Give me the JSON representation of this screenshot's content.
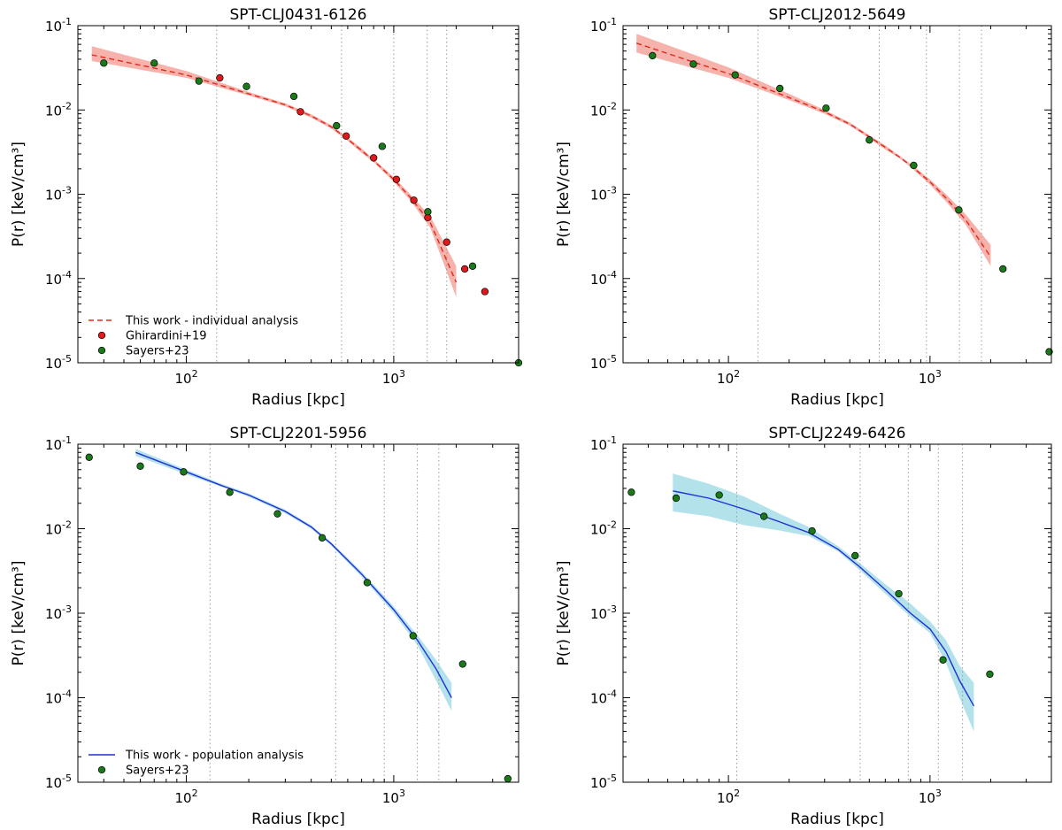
{
  "chart_data": [
    {
      "type": "scatter",
      "title": "SPT-CLJ0431-6126",
      "xlabel": "Radius [kpc]",
      "ylabel": "P(r) [keV/cm³]",
      "xscale": "log",
      "yscale": "log",
      "xlim": [
        30,
        4000
      ],
      "ylim": [
        1e-05,
        0.1
      ],
      "grid": false,
      "legend": "lower-left",
      "x_ticks": [
        {
          "base": "10",
          "exp": "2",
          "value": 100
        },
        {
          "base": "10",
          "exp": "3",
          "value": 1000
        }
      ],
      "y_ticks": [
        {
          "base": "10",
          "exp": "-5",
          "value": 1e-05
        },
        {
          "base": "10",
          "exp": "-4",
          "value": 0.0001
        },
        {
          "base": "10",
          "exp": "-3",
          "value": 0.001
        },
        {
          "base": "10",
          "exp": "-2",
          "value": 0.01
        },
        {
          "base": "10",
          "exp": "-1",
          "value": 0.1
        }
      ],
      "vlines": [
        140,
        560,
        1000,
        1450,
        1800
      ],
      "model": {
        "name": "This work - individual analysis",
        "style": "dashed",
        "color": "#e0291c",
        "band_color": "#f4a49c",
        "x": [
          35,
          100,
          200,
          300,
          400,
          500,
          600,
          700,
          800,
          1000,
          1200,
          1500,
          2000
        ],
        "y": [
          0.045,
          0.026,
          0.0155,
          0.0115,
          0.0085,
          0.0063,
          0.0045,
          0.0033,
          0.0025,
          0.0015,
          0.00092,
          0.00046,
          9e-05
        ],
        "lower": [
          0.038,
          0.024,
          0.0148,
          0.011,
          0.0081,
          0.006,
          0.0043,
          0.0031,
          0.0024,
          0.0014,
          0.00085,
          0.0004,
          6e-05
        ],
        "upper": [
          0.057,
          0.029,
          0.0163,
          0.012,
          0.0089,
          0.0066,
          0.0047,
          0.0035,
          0.0026,
          0.0016,
          0.001,
          0.00055,
          0.00014
        ]
      },
      "points": [
        {
          "name": "Ghirardini+19",
          "color": "#e0191c",
          "x": [
            145,
            355,
            590,
            800,
            1030,
            1250,
            1460,
            1800,
            2200,
            2750
          ],
          "y": [
            0.024,
            0.0095,
            0.0049,
            0.0027,
            0.0015,
            0.00085,
            0.00053,
            0.00027,
            0.00013,
            7e-05
          ]
        },
        {
          "name": "Sayers+23",
          "color": "#1a7a1a",
          "x": [
            40,
            70,
            115,
            195,
            330,
            530,
            880,
            1460,
            2400,
            4000
          ],
          "y": [
            0.036,
            0.036,
            0.022,
            0.019,
            0.0145,
            0.0065,
            0.0037,
            0.00062,
            0.00014,
            1e-05
          ]
        }
      ]
    },
    {
      "type": "scatter",
      "title": "SPT-CLJ2012-5649",
      "xlabel": "Radius [kpc]",
      "ylabel": "P(r) [keV/cm³]",
      "xscale": "log",
      "yscale": "log",
      "xlim": [
        30,
        4000
      ],
      "ylim": [
        1e-05,
        0.1
      ],
      "grid": false,
      "legend": "",
      "x_ticks": [
        {
          "base": "10",
          "exp": "2",
          "value": 100
        },
        {
          "base": "10",
          "exp": "3",
          "value": 1000
        }
      ],
      "y_ticks": [
        {
          "base": "10",
          "exp": "-5",
          "value": 1e-05
        },
        {
          "base": "10",
          "exp": "-4",
          "value": 0.0001
        },
        {
          "base": "10",
          "exp": "-3",
          "value": 0.001
        },
        {
          "base": "10",
          "exp": "-2",
          "value": 0.01
        },
        {
          "base": "10",
          "exp": "-1",
          "value": 0.1
        }
      ],
      "vlines": [
        140,
        560,
        960,
        1400,
        1800
      ],
      "model": {
        "name": "",
        "style": "dashed",
        "color": "#e0291c",
        "band_color": "#f4a49c",
        "x": [
          35,
          100,
          200,
          300,
          400,
          500,
          600,
          700,
          800,
          1000,
          1200,
          1500,
          2000
        ],
        "y": [
          0.062,
          0.027,
          0.014,
          0.0095,
          0.0068,
          0.0048,
          0.0036,
          0.0028,
          0.0022,
          0.0014,
          0.0009,
          0.0005,
          0.00018
        ],
        "lower": [
          0.048,
          0.024,
          0.0131,
          0.009,
          0.0065,
          0.0046,
          0.0034,
          0.0027,
          0.0021,
          0.0013,
          0.00082,
          0.00044,
          0.00014
        ],
        "upper": [
          0.08,
          0.032,
          0.0155,
          0.01,
          0.0071,
          0.005,
          0.0038,
          0.0029,
          0.0023,
          0.0015,
          0.001,
          0.00058,
          0.00025
        ]
      },
      "points": [
        {
          "name": "Sayers+23",
          "color": "#1a7a1a",
          "x": [
            42,
            67,
            108,
            180,
            305,
            500,
            830,
            1390,
            2300,
            3900
          ],
          "y": [
            0.044,
            0.035,
            0.026,
            0.018,
            0.0105,
            0.0044,
            0.0022,
            0.00065,
            0.00013,
            1.35e-05
          ]
        }
      ]
    },
    {
      "type": "scatter",
      "title": "SPT-CLJ2201-5956",
      "xlabel": "Radius [kpc]",
      "ylabel": "P(r) [keV/cm³]",
      "xscale": "log",
      "yscale": "log",
      "xlim": [
        30,
        4000
      ],
      "ylim": [
        1e-05,
        0.1
      ],
      "grid": false,
      "legend": "lower-left",
      "x_ticks": [
        {
          "base": "10",
          "exp": "2",
          "value": 100
        },
        {
          "base": "10",
          "exp": "3",
          "value": 1000
        }
      ],
      "y_ticks": [
        {
          "base": "10",
          "exp": "-5",
          "value": 1e-05
        },
        {
          "base": "10",
          "exp": "-4",
          "value": 0.0001
        },
        {
          "base": "10",
          "exp": "-3",
          "value": 0.001
        },
        {
          "base": "10",
          "exp": "-2",
          "value": 0.01
        },
        {
          "base": "10",
          "exp": "-1",
          "value": 0.1
        }
      ],
      "vlines": [
        130,
        525,
        900,
        1300,
        1650
      ],
      "model": {
        "name": "This work - population analysis",
        "style": "solid",
        "color": "#1f2fd6",
        "band_color": "#a6dde6",
        "x": [
          57,
          100,
          150,
          200,
          300,
          400,
          500,
          700,
          1000,
          1300,
          1600,
          1900
        ],
        "y": [
          0.08,
          0.047,
          0.032,
          0.025,
          0.016,
          0.0105,
          0.0066,
          0.0029,
          0.0011,
          0.00048,
          0.00022,
          0.0001
        ],
        "lower": [
          0.073,
          0.044,
          0.031,
          0.0238,
          0.0152,
          0.01,
          0.0063,
          0.0027,
          0.001,
          0.00042,
          0.00016,
          7e-05
        ],
        "upper": [
          0.088,
          0.05,
          0.0335,
          0.0262,
          0.0168,
          0.011,
          0.0069,
          0.0031,
          0.0012,
          0.00055,
          0.00028,
          0.00015
        ]
      },
      "points": [
        {
          "name": "Sayers+23",
          "color": "#1a7a1a",
          "x": [
            34,
            60,
            97,
            162,
            275,
            452,
            745,
            1240,
            2150,
            3550
          ],
          "y": [
            0.07,
            0.055,
            0.047,
            0.027,
            0.015,
            0.0078,
            0.0023,
            0.00054,
            0.00025,
            1.1e-05
          ]
        }
      ]
    },
    {
      "type": "scatter",
      "title": "SPT-CLJ2249-6426",
      "xlabel": "Radius [kpc]",
      "ylabel": "P(r) [keV/cm³]",
      "xscale": "log",
      "yscale": "log",
      "xlim": [
        30,
        4000
      ],
      "ylim": [
        1e-05,
        0.1
      ],
      "grid": false,
      "legend": "",
      "x_ticks": [
        {
          "base": "10",
          "exp": "2",
          "value": 100
        },
        {
          "base": "10",
          "exp": "3",
          "value": 1000
        }
      ],
      "y_ticks": [
        {
          "base": "10",
          "exp": "-5",
          "value": 1e-05
        },
        {
          "base": "10",
          "exp": "-4",
          "value": 0.0001
        },
        {
          "base": "10",
          "exp": "-3",
          "value": 0.001
        },
        {
          "base": "10",
          "exp": "-2",
          "value": 0.01
        },
        {
          "base": "10",
          "exp": "-1",
          "value": 0.1
        }
      ],
      "vlines": [
        110,
        450,
        780,
        1100,
        1450
      ],
      "model": {
        "name": "",
        "style": "solid",
        "color": "#1f2fd6",
        "band_color": "#a6dde6",
        "x": [
          53,
          80,
          120,
          180,
          250,
          350,
          450,
          600,
          800,
          1000,
          1200,
          1400,
          1650
        ],
        "y": [
          0.028,
          0.023,
          0.017,
          0.012,
          0.009,
          0.0057,
          0.0035,
          0.0019,
          0.001,
          0.00065,
          0.00035,
          0.00016,
          8e-05
        ],
        "lower": [
          0.016,
          0.014,
          0.011,
          0.0095,
          0.0082,
          0.0054,
          0.0032,
          0.0017,
          0.0009,
          0.00058,
          0.00026,
          0.0001,
          4e-05
        ],
        "upper": [
          0.045,
          0.034,
          0.024,
          0.015,
          0.0105,
          0.0062,
          0.0039,
          0.0022,
          0.0013,
          0.0008,
          0.00048,
          0.00024,
          0.00015
        ]
      },
      "points": [
        {
          "name": "Sayers+23",
          "color": "#1a7a1a",
          "x": [
            33,
            55,
            90,
            150,
            260,
            425,
            700,
            1160,
            1980
          ],
          "y": [
            0.027,
            0.023,
            0.025,
            0.014,
            0.0094,
            0.0048,
            0.0017,
            0.00028,
            0.00019
          ]
        }
      ]
    }
  ]
}
